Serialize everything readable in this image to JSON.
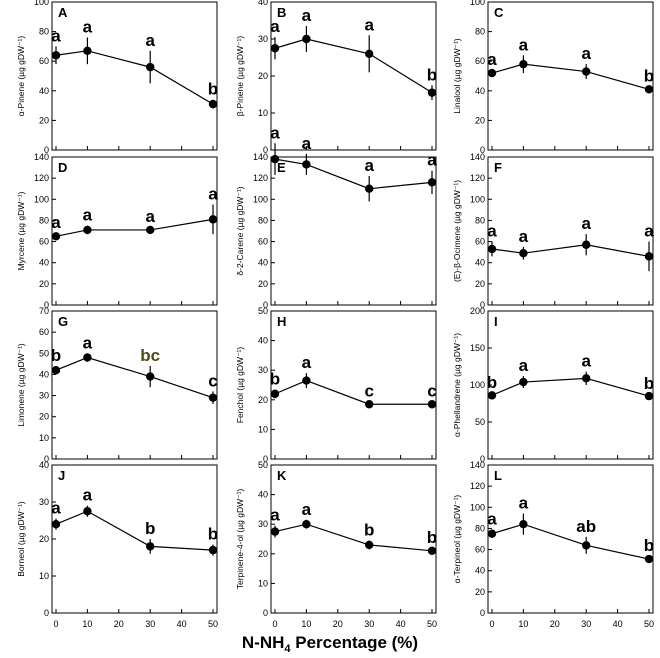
{
  "chart_data": {
    "type": "line",
    "xlabel": "N-NH",
    "xlabel_sub": "4",
    "xlabel_suffix": " Percentage (%)",
    "x": [
      0,
      10,
      30,
      50
    ],
    "xticks": [
      "0",
      "10",
      "20",
      "30",
      "40",
      "50"
    ],
    "panels": [
      {
        "label": "A",
        "ylabel": "α-Pinene (µg gDW⁻¹)",
        "ylim": [
          0,
          100
        ],
        "yticks": [
          0,
          20,
          40,
          60,
          80,
          100
        ],
        "values": [
          64,
          67,
          56,
          31
        ],
        "errors": [
          6,
          9,
          11,
          3
        ],
        "letters": [
          "a",
          "a",
          "a",
          "b"
        ]
      },
      {
        "label": "B",
        "ylabel": "β-Pinene (µg gDW⁻¹)",
        "ylim": [
          0,
          40
        ],
        "yticks": [
          0,
          10,
          20,
          30,
          40
        ],
        "values": [
          27.5,
          30,
          26,
          15.5
        ],
        "errors": [
          3,
          3.5,
          5,
          2
        ],
        "letters": [
          "a",
          "a",
          "a",
          "b"
        ]
      },
      {
        "label": "C",
        "ylabel": "Linalool (µg gDW⁻¹)",
        "ylim": [
          0,
          100
        ],
        "yticks": [
          0,
          20,
          40,
          60,
          80,
          100
        ],
        "values": [
          52,
          58,
          53,
          41
        ],
        "errors": [
          2,
          6,
          5,
          2
        ],
        "letters": [
          "a",
          "a",
          "a",
          "b"
        ]
      },
      {
        "label": "D",
        "ylabel": "Myrcene (µg gDW⁻¹)",
        "ylim": [
          0,
          140
        ],
        "yticks": [
          0,
          20,
          40,
          60,
          80,
          100,
          120,
          140
        ],
        "values": [
          65,
          71,
          71,
          81
        ],
        "errors": [
          3,
          4,
          3,
          14
        ],
        "letters": [
          "a",
          "a",
          "a",
          "a"
        ]
      },
      {
        "label": "E",
        "ylabel": "δ-2-Carene (µg gDW⁻¹)",
        "ylim": [
          0,
          140
        ],
        "yticks": [
          0,
          20,
          40,
          60,
          80,
          100,
          120,
          140
        ],
        "values": [
          138,
          133,
          110,
          116
        ],
        "errors": [
          15,
          10,
          12,
          11
        ],
        "letters": [
          "a",
          "a",
          "a",
          "a"
        ]
      },
      {
        "label": "F",
        "ylabel": "(E)-β-Ocimene (µg gDW⁻¹)",
        "ylim": [
          0,
          140
        ],
        "yticks": [
          0,
          20,
          40,
          60,
          80,
          100,
          120,
          140
        ],
        "values": [
          53,
          49,
          57,
          46
        ],
        "errors": [
          7,
          6,
          10,
          14
        ],
        "letters": [
          "a",
          "a",
          "a",
          "a"
        ]
      },
      {
        "label": "G",
        "ylabel": "Limonene (µg gDW⁻¹)",
        "ylim": [
          0,
          70
        ],
        "yticks": [
          0,
          10,
          20,
          30,
          40,
          50,
          60,
          70
        ],
        "values": [
          42,
          48,
          39,
          29
        ],
        "errors": [
          2,
          2,
          5,
          3
        ],
        "letters": [
          "b",
          "a",
          "bc",
          "c"
        ]
      },
      {
        "label": "H",
        "ylabel": "Fenchol (µg gDW⁻¹)",
        "ylim": [
          0,
          50
        ],
        "yticks": [
          0,
          10,
          20,
          30,
          40,
          50
        ],
        "values": [
          22,
          26.5,
          18.5,
          18.5
        ],
        "errors": [
          1.5,
          2.5,
          1,
          1
        ],
        "letters": [
          "b",
          "a",
          "c",
          "c"
        ]
      },
      {
        "label": "I",
        "ylabel": "α-Phellandrene (µg gDW⁻¹)",
        "ylim": [
          0,
          200
        ],
        "yticks": [
          0,
          50,
          100,
          150,
          200
        ],
        "values": [
          86,
          104,
          109,
          85
        ],
        "errors": [
          3,
          8,
          9,
          3
        ],
        "letters": [
          "b",
          "a",
          "a",
          "b"
        ]
      },
      {
        "label": "J",
        "ylabel": "Borneol (µg gDW⁻¹)",
        "ylim": [
          0,
          40
        ],
        "yticks": [
          0,
          10,
          20,
          30,
          40
        ],
        "values": [
          24,
          27.5,
          18,
          17
        ],
        "errors": [
          1.5,
          1.5,
          2,
          1.5
        ],
        "letters": [
          "a",
          "a",
          "b",
          "b"
        ]
      },
      {
        "label": "K",
        "ylabel": "Terpinene-4-ol (µg gDW⁻¹)",
        "ylim": [
          0,
          50
        ],
        "yticks": [
          0,
          10,
          20,
          30,
          40,
          50
        ],
        "values": [
          27.5,
          30,
          23,
          21
        ],
        "errors": [
          2,
          1.5,
          1.5,
          1
        ],
        "letters": [
          "a",
          "a",
          "b",
          "b"
        ]
      },
      {
        "label": "L",
        "ylabel": "α-Terpineol (µg gDW⁻¹)",
        "ylim": [
          0,
          140
        ],
        "yticks": [
          0,
          20,
          40,
          60,
          80,
          100,
          120,
          140
        ],
        "values": [
          75,
          84,
          64,
          51
        ],
        "errors": [
          4,
          10,
          8,
          3
        ],
        "letters": [
          "a",
          "a",
          "ab",
          "b"
        ]
      }
    ]
  },
  "colors": {
    "ink": "#000000",
    "accent_letter": "#4d4d1a"
  }
}
